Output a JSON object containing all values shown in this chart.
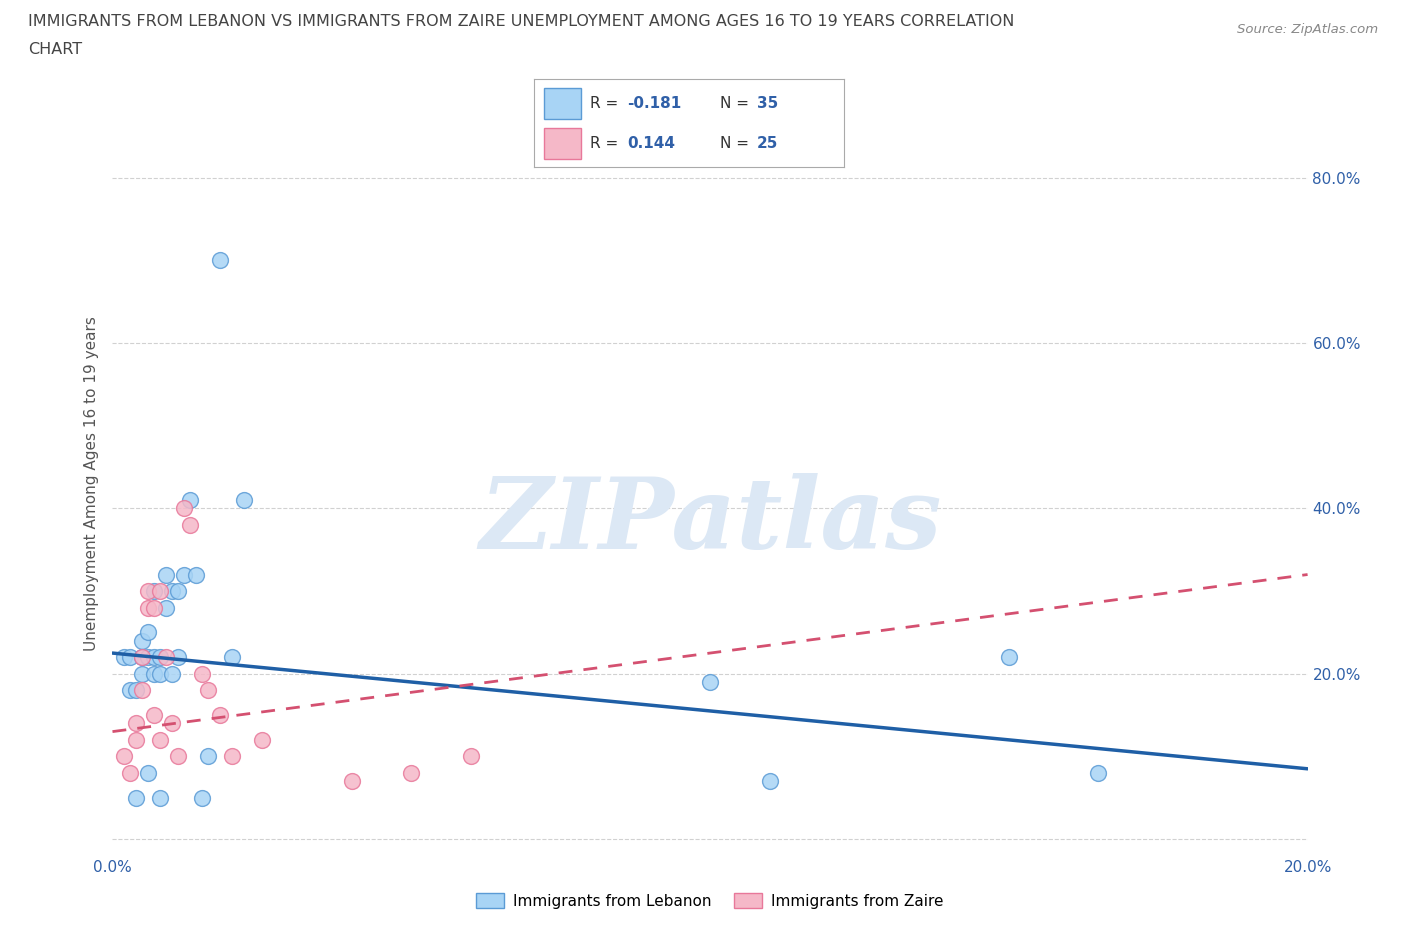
{
  "title_line1": "IMMIGRANTS FROM LEBANON VS IMMIGRANTS FROM ZAIRE UNEMPLOYMENT AMONG AGES 16 TO 19 YEARS CORRELATION",
  "title_line2": "CHART",
  "source": "Source: ZipAtlas.com",
  "ylabel": "Unemployment Among Ages 16 to 19 years",
  "xlim": [
    0.0,
    0.2
  ],
  "ylim": [
    -0.02,
    0.88
  ],
  "yticks": [
    0.0,
    0.2,
    0.4,
    0.6,
    0.8
  ],
  "ytick_labels": [
    "",
    "20.0%",
    "40.0%",
    "60.0%",
    "80.0%"
  ],
  "xtick_positions": [
    0.0,
    0.05,
    0.1,
    0.15,
    0.2
  ],
  "xtick_labels": [
    "0.0%",
    "",
    "",
    "",
    "20.0%"
  ],
  "lebanon_color": "#a8d4f5",
  "zaire_color": "#f5b8c8",
  "lebanon_edge_color": "#5b9bd5",
  "zaire_edge_color": "#e8789a",
  "lebanon_line_color": "#1f5fa6",
  "zaire_line_color": "#d45070",
  "legend_label_lebanon": "Immigrants from Lebanon",
  "legend_label_zaire": "Immigrants from Zaire",
  "watermark": "ZIPatlas",
  "watermark_color": "#dce8f5",
  "background_color": "#ffffff",
  "grid_color": "#cccccc",
  "lebanon_x": [
    0.002,
    0.003,
    0.003,
    0.004,
    0.004,
    0.005,
    0.005,
    0.005,
    0.006,
    0.006,
    0.006,
    0.007,
    0.007,
    0.007,
    0.008,
    0.008,
    0.008,
    0.009,
    0.009,
    0.01,
    0.01,
    0.011,
    0.011,
    0.012,
    0.013,
    0.014,
    0.015,
    0.016,
    0.018,
    0.02,
    0.022,
    0.1,
    0.11,
    0.15,
    0.165
  ],
  "lebanon_y": [
    0.22,
    0.18,
    0.22,
    0.05,
    0.18,
    0.22,
    0.2,
    0.24,
    0.08,
    0.22,
    0.25,
    0.2,
    0.22,
    0.3,
    0.05,
    0.2,
    0.22,
    0.28,
    0.32,
    0.2,
    0.3,
    0.22,
    0.3,
    0.32,
    0.41,
    0.32,
    0.05,
    0.1,
    0.7,
    0.22,
    0.41,
    0.19,
    0.07,
    0.22,
    0.08
  ],
  "zaire_x": [
    0.002,
    0.003,
    0.004,
    0.004,
    0.005,
    0.005,
    0.006,
    0.006,
    0.007,
    0.007,
    0.008,
    0.008,
    0.009,
    0.01,
    0.011,
    0.012,
    0.013,
    0.015,
    0.016,
    0.018,
    0.02,
    0.025,
    0.04,
    0.05,
    0.06
  ],
  "zaire_y": [
    0.1,
    0.08,
    0.14,
    0.12,
    0.22,
    0.18,
    0.28,
    0.3,
    0.15,
    0.28,
    0.12,
    0.3,
    0.22,
    0.14,
    0.1,
    0.4,
    0.38,
    0.2,
    0.18,
    0.15,
    0.1,
    0.12,
    0.07,
    0.08,
    0.1
  ],
  "leb_line_x0": 0.0,
  "leb_line_x1": 0.2,
  "leb_line_y0": 0.225,
  "leb_line_y1": 0.085,
  "zaire_line_x0": 0.0,
  "zaire_line_x1": 0.2,
  "zaire_line_y0": 0.13,
  "zaire_line_y1": 0.32
}
